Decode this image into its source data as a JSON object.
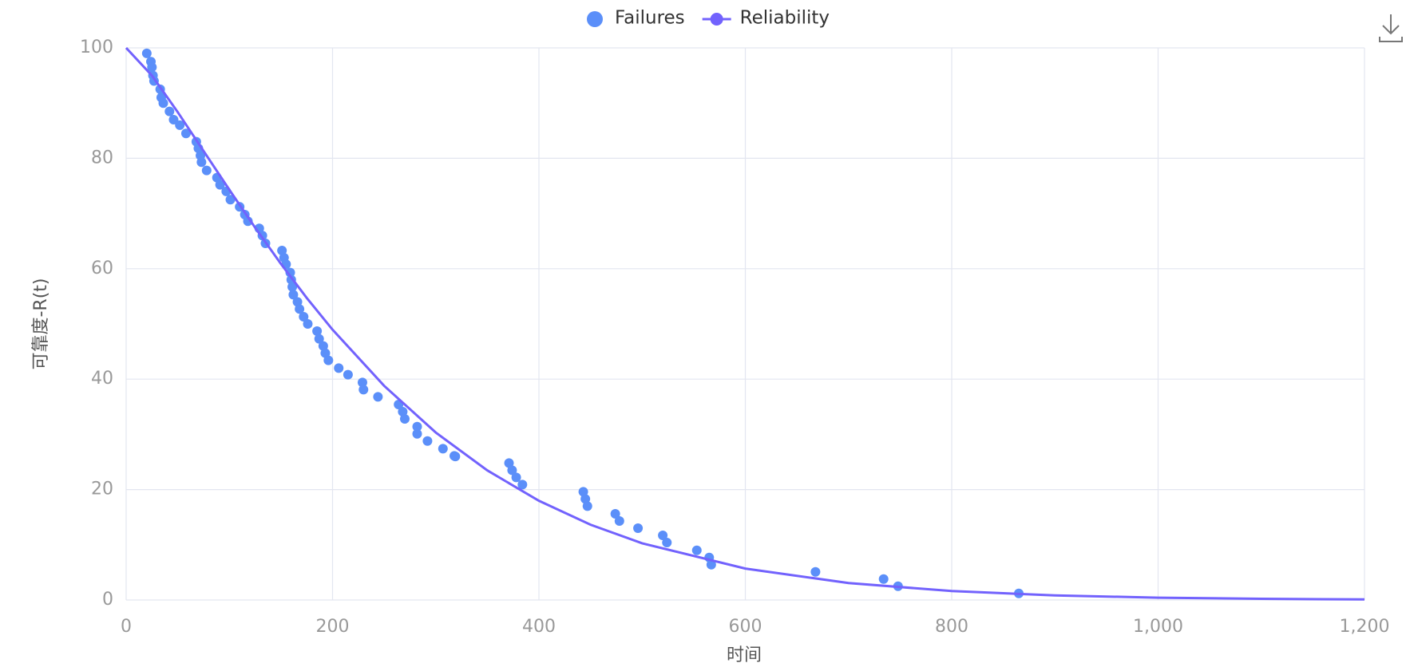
{
  "chart_data": {
    "type": "scatter",
    "x_label": "时间",
    "y_label": "可靠度-R(t)",
    "xlim": [
      0,
      1200
    ],
    "ylim": [
      0,
      100
    ],
    "xticks": [
      0,
      200,
      400,
      600,
      800,
      {
        "value": 1000,
        "label": "1,000"
      },
      {
        "value": 1200,
        "label": "1,200"
      }
    ],
    "yticks": [
      0,
      20,
      40,
      60,
      80,
      100
    ],
    "grid": true,
    "legend": "top",
    "series": [
      {
        "name": "Failures",
        "type": "scatter",
        "color": "#5b8ff9",
        "x": [
          20,
          24,
          25,
          26,
          27,
          33,
          34,
          36,
          42,
          46,
          52,
          58,
          68,
          70,
          72,
          73,
          78,
          88,
          91,
          97,
          101,
          110,
          115,
          118,
          129,
          132,
          135,
          151,
          153,
          155,
          159,
          160,
          161,
          162,
          166,
          168,
          172,
          176,
          185,
          187,
          191,
          193,
          196,
          206,
          215,
          229,
          230,
          244,
          264,
          268,
          270,
          282,
          282,
          292,
          307,
          318,
          319,
          371,
          374,
          378,
          384,
          443,
          445,
          447,
          474,
          478,
          496,
          520,
          524,
          553,
          565,
          567,
          668,
          734,
          748,
          865
        ],
        "values": [
          99,
          97.5,
          96.5,
          95,
          94,
          92.5,
          91,
          90,
          88.5,
          87,
          86,
          84.5,
          83,
          81.8,
          80.5,
          79.3,
          77.8,
          76.5,
          75.2,
          74,
          72.5,
          71.2,
          69.8,
          68.6,
          67.3,
          66,
          64.6,
          63.3,
          62,
          60.8,
          59.3,
          58,
          56.7,
          55.3,
          54,
          52.7,
          51.3,
          50,
          48.7,
          47.3,
          46,
          44.7,
          43.4,
          42,
          40.8,
          39.4,
          38.1,
          36.8,
          35.4,
          34.1,
          32.8,
          31.4,
          30.1,
          28.8,
          27.4,
          26.1,
          26,
          24.8,
          23.5,
          22.2,
          20.9,
          19.6,
          18.3,
          17,
          15.6,
          14.3,
          13,
          11.7,
          10.4,
          9,
          7.7,
          6.4,
          5.1,
          3.8,
          2.5,
          1.2
        ]
      },
      {
        "name": "Reliability",
        "type": "line",
        "color": "#7262fd",
        "x": [
          0,
          25,
          50,
          75,
          100,
          125,
          150,
          175,
          200,
          250,
          300,
          350,
          400,
          450,
          500,
          600,
          700,
          800,
          900,
          1000,
          1100,
          1200
        ],
        "values": [
          100,
          94.98,
          88.36,
          81.33,
          74.3,
          67.44,
          60.88,
          54.71,
          48.96,
          38.79,
          30.34,
          23.47,
          17.97,
          13.64,
          10.27,
          5.69,
          3.07,
          1.62,
          0.83,
          0.42,
          0.21,
          0.1
        ]
      }
    ]
  }
}
